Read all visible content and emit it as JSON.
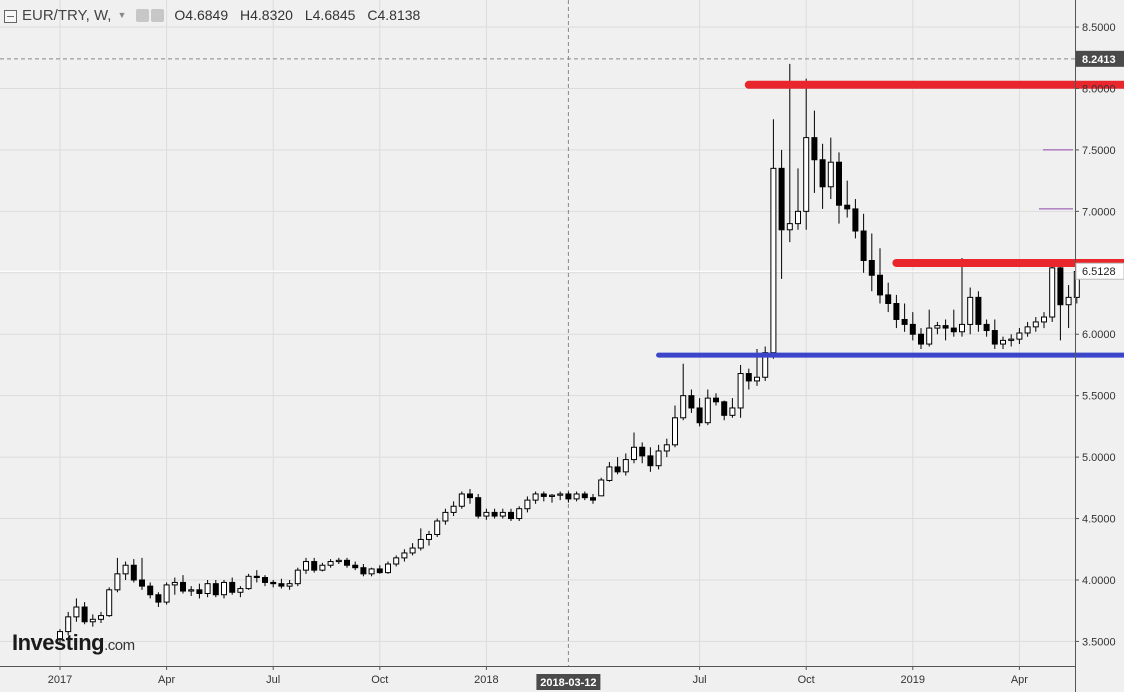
{
  "header": {
    "symbol": "EUR/TRY, W,",
    "open_label": "O",
    "open": "4.6849",
    "high_label": "H",
    "high": "4.8320",
    "low_label": "L",
    "low": "4.6845",
    "close_label": "C",
    "close": "4.8138"
  },
  "logo": {
    "main": "Investing",
    "suffix": ".com"
  },
  "colors": {
    "background": "#f0f0f0",
    "grid": "#dcdcdc",
    "up_candle": "#ffffff",
    "down_candle": "#000000",
    "resistance": "#e8262c",
    "support": "#3a45c9",
    "purple_mark": "#8e44ad"
  },
  "chart_data": {
    "type": "candlestick",
    "title": "EUR/TRY, W,",
    "ylim": [
      3.3,
      8.72
    ],
    "yticks": [
      "3.5000",
      "4.0000",
      "4.5000",
      "5.0000",
      "5.5000",
      "6.0000",
      "6.5000",
      "7.0000",
      "7.5000",
      "8.0000",
      "8.5000"
    ],
    "ytick_values": [
      3.5,
      4.0,
      4.5,
      5.0,
      5.5,
      6.0,
      6.5,
      7.0,
      7.5,
      8.0,
      8.5
    ],
    "xtick_labels": [
      "2017",
      "Apr",
      "Jul",
      "Oct",
      "2018",
      "Jul",
      "Oct",
      "2019",
      "Apr"
    ],
    "xtick_weeks": [
      0,
      13,
      26,
      39,
      52,
      78,
      91,
      104,
      117
    ],
    "crosshair": {
      "date_label": "2018-03-12",
      "week": 62,
      "price_label": "8.2413",
      "price": 8.2413
    },
    "last_price_label": "6.5128",
    "last_price": 6.5128,
    "horizontal_lines": [
      {
        "color": "red",
        "price": 8.03,
        "from_week": 84,
        "to_week": 131
      },
      {
        "color": "red",
        "price": 6.58,
        "from_week": 102,
        "to_week": 132
      },
      {
        "color": "blue",
        "price": 5.83,
        "from_week": 73,
        "to_week": 131
      }
    ],
    "ohlc": [
      [
        3.52,
        3.6,
        3.48,
        3.58
      ],
      [
        3.58,
        3.74,
        3.55,
        3.7
      ],
      [
        3.7,
        3.85,
        3.66,
        3.78
      ],
      [
        3.78,
        3.82,
        3.64,
        3.66
      ],
      [
        3.66,
        3.72,
        3.62,
        3.68
      ],
      [
        3.68,
        3.74,
        3.65,
        3.71
      ],
      [
        3.71,
        3.94,
        3.7,
        3.92
      ],
      [
        3.92,
        4.18,
        3.9,
        4.05
      ],
      [
        4.05,
        4.15,
        4.0,
        4.12
      ],
      [
        4.12,
        4.17,
        3.98,
        4.0
      ],
      [
        4.0,
        4.18,
        3.92,
        3.95
      ],
      [
        3.95,
        3.98,
        3.85,
        3.88
      ],
      [
        3.88,
        3.9,
        3.78,
        3.82
      ],
      [
        3.82,
        3.98,
        3.8,
        3.96
      ],
      [
        3.96,
        4.02,
        3.88,
        3.98
      ],
      [
        3.98,
        4.04,
        3.89,
        3.91
      ],
      [
        3.91,
        3.95,
        3.87,
        3.92
      ],
      [
        3.92,
        3.97,
        3.85,
        3.89
      ],
      [
        3.89,
        4.0,
        3.86,
        3.97
      ],
      [
        3.97,
        4.0,
        3.86,
        3.88
      ],
      [
        3.88,
        4.0,
        3.85,
        3.98
      ],
      [
        3.98,
        4.02,
        3.88,
        3.9
      ],
      [
        3.9,
        3.95,
        3.86,
        3.93
      ],
      [
        3.93,
        4.05,
        3.92,
        4.03
      ],
      [
        4.03,
        4.08,
        3.98,
        4.02
      ],
      [
        4.02,
        4.04,
        3.95,
        3.98
      ],
      [
        3.98,
        4.0,
        3.94,
        3.97
      ],
      [
        3.97,
        4.01,
        3.93,
        3.95
      ],
      [
        3.95,
        4.0,
        3.92,
        3.97
      ],
      [
        3.97,
        4.1,
        3.95,
        4.08
      ],
      [
        4.08,
        4.18,
        4.05,
        4.15
      ],
      [
        4.15,
        4.18,
        4.06,
        4.08
      ],
      [
        4.08,
        4.14,
        4.07,
        4.12
      ],
      [
        4.12,
        4.17,
        4.1,
        4.15
      ],
      [
        4.15,
        4.18,
        4.13,
        4.16
      ],
      [
        4.16,
        4.18,
        4.1,
        4.12
      ],
      [
        4.12,
        4.15,
        4.08,
        4.1
      ],
      [
        4.1,
        4.13,
        4.03,
        4.05
      ],
      [
        4.05,
        4.1,
        4.03,
        4.09
      ],
      [
        4.09,
        4.12,
        4.05,
        4.06
      ],
      [
        4.06,
        4.15,
        4.05,
        4.13
      ],
      [
        4.13,
        4.2,
        4.11,
        4.18
      ],
      [
        4.18,
        4.25,
        4.15,
        4.22
      ],
      [
        4.22,
        4.3,
        4.2,
        4.26
      ],
      [
        4.26,
        4.42,
        4.24,
        4.33
      ],
      [
        4.33,
        4.4,
        4.28,
        4.37
      ],
      [
        4.37,
        4.5,
        4.35,
        4.48
      ],
      [
        4.48,
        4.58,
        4.45,
        4.55
      ],
      [
        4.55,
        4.64,
        4.52,
        4.6
      ],
      [
        4.6,
        4.72,
        4.58,
        4.7
      ],
      [
        4.7,
        4.74,
        4.62,
        4.67
      ],
      [
        4.67,
        4.7,
        4.5,
        4.52
      ],
      [
        4.52,
        4.58,
        4.49,
        4.55
      ],
      [
        4.55,
        4.58,
        4.5,
        4.52
      ],
      [
        4.52,
        4.58,
        4.5,
        4.55
      ],
      [
        4.55,
        4.58,
        4.48,
        4.5
      ],
      [
        4.5,
        4.6,
        4.48,
        4.58
      ],
      [
        4.58,
        4.68,
        4.55,
        4.65
      ],
      [
        4.65,
        4.72,
        4.62,
        4.7
      ],
      [
        4.7,
        4.72,
        4.64,
        4.68
      ],
      [
        4.68,
        4.7,
        4.63,
        4.69
      ],
      [
        4.69,
        4.72,
        4.65,
        4.7
      ],
      [
        4.7,
        4.72,
        4.63,
        4.66
      ],
      [
        4.66,
        4.72,
        4.64,
        4.7
      ],
      [
        4.7,
        4.72,
        4.65,
        4.67
      ],
      [
        4.67,
        4.7,
        4.62,
        4.65
      ],
      [
        4.6849,
        4.832,
        4.6845,
        4.8138
      ],
      [
        4.81,
        4.96,
        4.8,
        4.92
      ],
      [
        4.92,
        5.0,
        4.86,
        4.88
      ],
      [
        4.88,
        5.03,
        4.85,
        4.98
      ],
      [
        4.98,
        5.2,
        4.95,
        5.08
      ],
      [
        5.08,
        5.12,
        4.95,
        5.01
      ],
      [
        5.01,
        5.08,
        4.88,
        4.93
      ],
      [
        4.93,
        5.1,
        4.9,
        5.05
      ],
      [
        5.05,
        5.15,
        5.0,
        5.1
      ],
      [
        5.1,
        5.42,
        5.08,
        5.32
      ],
      [
        5.32,
        5.76,
        5.3,
        5.5
      ],
      [
        5.5,
        5.55,
        5.36,
        5.4
      ],
      [
        5.4,
        5.48,
        5.25,
        5.28
      ],
      [
        5.28,
        5.55,
        5.26,
        5.48
      ],
      [
        5.48,
        5.52,
        5.42,
        5.45
      ],
      [
        5.45,
        5.46,
        5.3,
        5.34
      ],
      [
        5.34,
        5.48,
        5.32,
        5.4
      ],
      [
        5.4,
        5.75,
        5.32,
        5.68
      ],
      [
        5.68,
        5.72,
        5.55,
        5.62
      ],
      [
        5.62,
        5.88,
        5.58,
        5.65
      ],
      [
        5.65,
        5.9,
        5.62,
        5.85
      ],
      [
        5.85,
        7.75,
        5.8,
        7.35
      ],
      [
        7.35,
        7.5,
        6.45,
        6.85
      ],
      [
        6.85,
        8.2,
        6.75,
        6.9
      ],
      [
        6.9,
        7.35,
        6.85,
        7.0
      ],
      [
        7.0,
        8.08,
        6.85,
        7.6
      ],
      [
        7.6,
        7.82,
        7.15,
        7.42
      ],
      [
        7.42,
        7.55,
        7.02,
        7.2
      ],
      [
        7.2,
        7.6,
        7.1,
        7.4
      ],
      [
        7.4,
        7.48,
        6.9,
        7.05
      ],
      [
        7.05,
        7.25,
        6.95,
        7.02
      ],
      [
        7.02,
        7.1,
        6.78,
        6.84
      ],
      [
        6.84,
        6.98,
        6.5,
        6.6
      ],
      [
        6.6,
        6.82,
        6.35,
        6.48
      ],
      [
        6.48,
        6.7,
        6.25,
        6.32
      ],
      [
        6.32,
        6.42,
        6.18,
        6.25
      ],
      [
        6.25,
        6.32,
        6.05,
        6.12
      ],
      [
        6.12,
        6.25,
        6.02,
        6.08
      ],
      [
        6.08,
        6.18,
        5.95,
        6.0
      ],
      [
        6.0,
        6.05,
        5.88,
        5.92
      ],
      [
        5.92,
        6.2,
        5.9,
        6.05
      ],
      [
        6.05,
        6.1,
        6.0,
        6.07
      ],
      [
        6.07,
        6.12,
        5.95,
        6.05
      ],
      [
        6.05,
        6.2,
        5.98,
        6.02
      ],
      [
        6.02,
        6.62,
        5.98,
        6.08
      ],
      [
        6.08,
        6.38,
        6.0,
        6.3
      ],
      [
        6.3,
        6.35,
        6.02,
        6.08
      ],
      [
        6.08,
        6.12,
        5.98,
        6.03
      ],
      [
        6.03,
        6.12,
        5.88,
        5.92
      ],
      [
        5.92,
        5.98,
        5.88,
        5.95
      ],
      [
        5.95,
        6.0,
        5.9,
        5.96
      ],
      [
        5.96,
        6.05,
        5.92,
        6.01
      ],
      [
        6.01,
        6.1,
        5.98,
        6.06
      ],
      [
        6.06,
        6.14,
        6.02,
        6.1
      ],
      [
        6.1,
        6.18,
        6.05,
        6.14
      ],
      [
        6.14,
        6.6,
        6.1,
        6.54
      ],
      [
        6.54,
        6.58,
        5.95,
        6.24
      ],
      [
        6.24,
        6.4,
        6.05,
        6.3
      ],
      [
        6.3,
        6.55,
        6.25,
        6.51
      ]
    ]
  }
}
